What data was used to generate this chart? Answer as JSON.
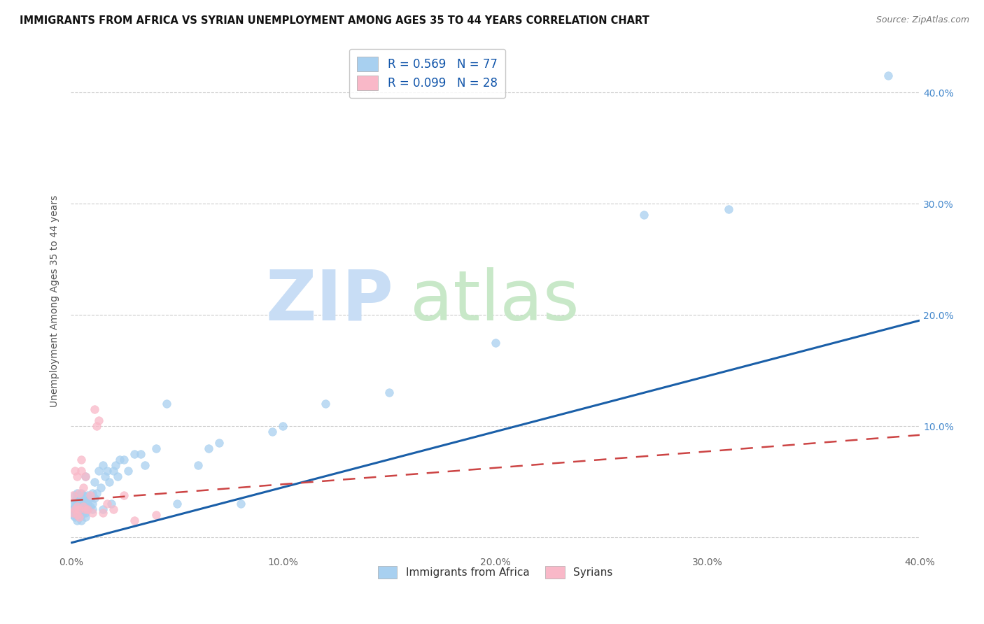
{
  "title": "IMMIGRANTS FROM AFRICA VS SYRIAN UNEMPLOYMENT AMONG AGES 35 TO 44 YEARS CORRELATION CHART",
  "source": "Source: ZipAtlas.com",
  "ylabel": "Unemployment Among Ages 35 to 44 years",
  "x_min": 0.0,
  "x_max": 0.4,
  "y_min": -0.015,
  "y_max": 0.44,
  "x_ticks": [
    0.0,
    0.1,
    0.2,
    0.3,
    0.4
  ],
  "x_tick_labels": [
    "0.0%",
    "",
    "",
    "",
    "40.0%"
  ],
  "y_ticks": [
    0.0,
    0.1,
    0.2,
    0.3,
    0.4
  ],
  "y_tick_labels_left": [
    "",
    "",
    "",
    "",
    ""
  ],
  "y_tick_labels_right": [
    "",
    "10.0%",
    "20.0%",
    "30.0%",
    "40.0%"
  ],
  "legend_1_label": "R = 0.569   N = 77",
  "legend_2_label": "R = 0.099   N = 28",
  "legend_label_africa": "Immigrants from Africa",
  "legend_label_syrians": "Syrians",
  "color_africa": "#a8d0f0",
  "color_syrians": "#f9b8c8",
  "color_africa_line": "#1a5fa8",
  "color_syrians_line": "#cc4444",
  "africa_x": [
    0.001,
    0.001,
    0.001,
    0.002,
    0.002,
    0.002,
    0.002,
    0.002,
    0.003,
    0.003,
    0.003,
    0.003,
    0.003,
    0.003,
    0.004,
    0.004,
    0.004,
    0.004,
    0.004,
    0.005,
    0.005,
    0.005,
    0.005,
    0.005,
    0.005,
    0.006,
    0.006,
    0.006,
    0.006,
    0.007,
    0.007,
    0.007,
    0.007,
    0.007,
    0.008,
    0.008,
    0.008,
    0.009,
    0.009,
    0.01,
    0.01,
    0.01,
    0.011,
    0.011,
    0.012,
    0.013,
    0.014,
    0.015,
    0.015,
    0.016,
    0.017,
    0.018,
    0.019,
    0.02,
    0.021,
    0.022,
    0.023,
    0.025,
    0.027,
    0.03,
    0.033,
    0.035,
    0.04,
    0.045,
    0.05,
    0.06,
    0.065,
    0.07,
    0.08,
    0.095,
    0.1,
    0.12,
    0.15,
    0.2,
    0.27,
    0.31,
    0.385
  ],
  "africa_y": [
    0.02,
    0.025,
    0.03,
    0.018,
    0.022,
    0.028,
    0.033,
    0.038,
    0.015,
    0.02,
    0.025,
    0.03,
    0.035,
    0.04,
    0.018,
    0.022,
    0.028,
    0.033,
    0.038,
    0.015,
    0.02,
    0.025,
    0.03,
    0.035,
    0.04,
    0.022,
    0.028,
    0.033,
    0.038,
    0.018,
    0.022,
    0.028,
    0.033,
    0.055,
    0.025,
    0.03,
    0.038,
    0.028,
    0.035,
    0.025,
    0.03,
    0.04,
    0.035,
    0.05,
    0.04,
    0.06,
    0.045,
    0.065,
    0.025,
    0.055,
    0.06,
    0.05,
    0.03,
    0.06,
    0.065,
    0.055,
    0.07,
    0.07,
    0.06,
    0.075,
    0.075,
    0.065,
    0.08,
    0.12,
    0.03,
    0.065,
    0.08,
    0.085,
    0.03,
    0.095,
    0.1,
    0.12,
    0.13,
    0.175,
    0.29,
    0.295,
    0.415
  ],
  "syrians_x": [
    0.001,
    0.001,
    0.002,
    0.002,
    0.003,
    0.003,
    0.003,
    0.004,
    0.004,
    0.004,
    0.005,
    0.005,
    0.006,
    0.006,
    0.007,
    0.007,
    0.008,
    0.009,
    0.01,
    0.011,
    0.012,
    0.013,
    0.015,
    0.017,
    0.02,
    0.025,
    0.03,
    0.04
  ],
  "syrians_y": [
    0.022,
    0.038,
    0.025,
    0.06,
    0.02,
    0.028,
    0.055,
    0.025,
    0.04,
    0.018,
    0.06,
    0.07,
    0.028,
    0.045,
    0.025,
    0.055,
    0.025,
    0.038,
    0.022,
    0.115,
    0.1,
    0.105,
    0.022,
    0.03,
    0.025,
    0.038,
    0.015,
    0.02
  ],
  "africa_trend_x": [
    0.0,
    0.4
  ],
  "africa_trend_y": [
    -0.005,
    0.195
  ],
  "syrians_trend_x": [
    0.0,
    0.4
  ],
  "syrians_trend_y": [
    0.033,
    0.092
  ],
  "title_fontsize": 10.5,
  "tick_fontsize": 10,
  "axis_fontsize": 10
}
